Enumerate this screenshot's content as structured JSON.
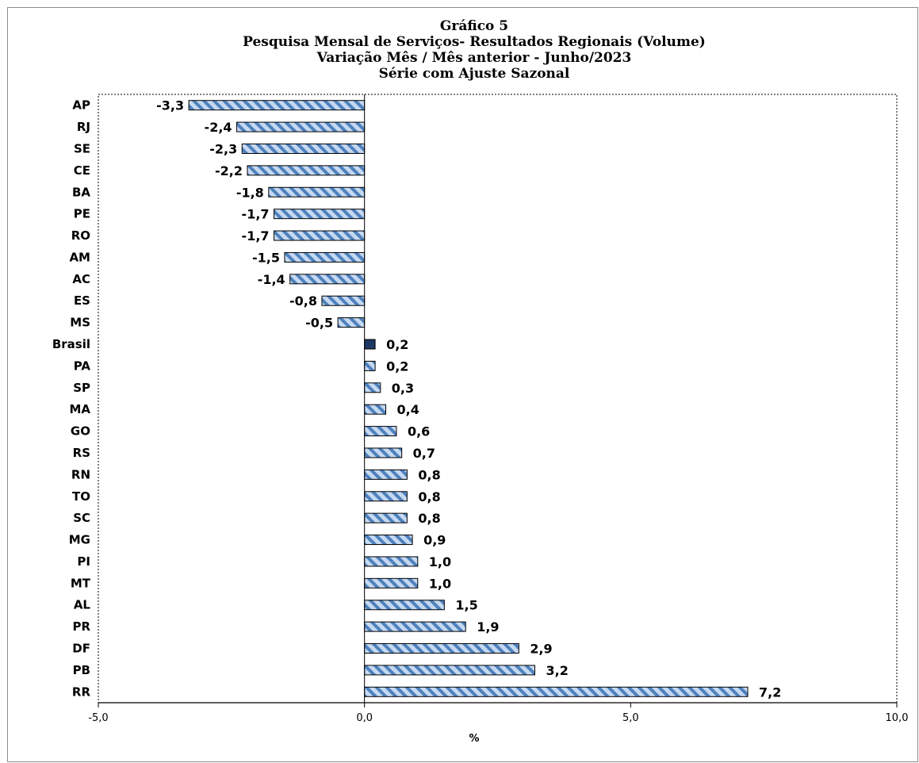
{
  "chart_data": {
    "type": "bar",
    "orientation": "horizontal",
    "title_lines": [
      "Gráfico 5",
      "Pesquisa Mensal de Serviços- Resultados Regionais (Volume)",
      "Variação Mês / Mês anterior - Junho/2023",
      "Série com Ajuste Sazonal"
    ],
    "xlabel": "%",
    "ylabel": "",
    "xlim": [
      -5,
      10
    ],
    "xticks": [
      -5,
      0,
      5,
      10
    ],
    "xtick_labels": [
      "-5,0",
      "0,0",
      "5,0",
      "10,0"
    ],
    "grid": false,
    "legend": "none",
    "categories": [
      "AP",
      "RJ",
      "SE",
      "CE",
      "BA",
      "PE",
      "RO",
      "AM",
      "AC",
      "ES",
      "MS",
      "Brasil",
      "PA",
      "SP",
      "MA",
      "GO",
      "RS",
      "RN",
      "TO",
      "SC",
      "MG",
      "PI",
      "MT",
      "AL",
      "PR",
      "DF",
      "PB",
      "RR"
    ],
    "values": [
      -3.3,
      -2.4,
      -2.3,
      -2.2,
      -1.8,
      -1.7,
      -1.7,
      -1.5,
      -1.4,
      -0.8,
      -0.5,
      0.2,
      0.2,
      0.3,
      0.4,
      0.6,
      0.7,
      0.8,
      0.8,
      0.8,
      0.9,
      1.0,
      1.0,
      1.5,
      1.9,
      2.9,
      3.2,
      7.2
    ],
    "value_labels": [
      "-3,3",
      "-2,4",
      "-2,3",
      "-2,2",
      "-1,8",
      "-1,7",
      "-1,7",
      "-1,5",
      "-1,4",
      "-0,8",
      "-0,5",
      "0,2",
      "0,2",
      "0,3",
      "0,4",
      "0,6",
      "0,7",
      "0,8",
      "0,8",
      "0,8",
      "0,9",
      "1,0",
      "1,0",
      "1,5",
      "1,9",
      "2,9",
      "3,2",
      "7,2"
    ],
    "highlight_category": "Brasil",
    "colors": {
      "bar_fill_light": "#c5d9f1",
      "bar_stripe": "#4f81bd",
      "highlight_fill": "#1f3864",
      "bar_border": "#000000",
      "frame_border": "#8c8c8c"
    }
  }
}
